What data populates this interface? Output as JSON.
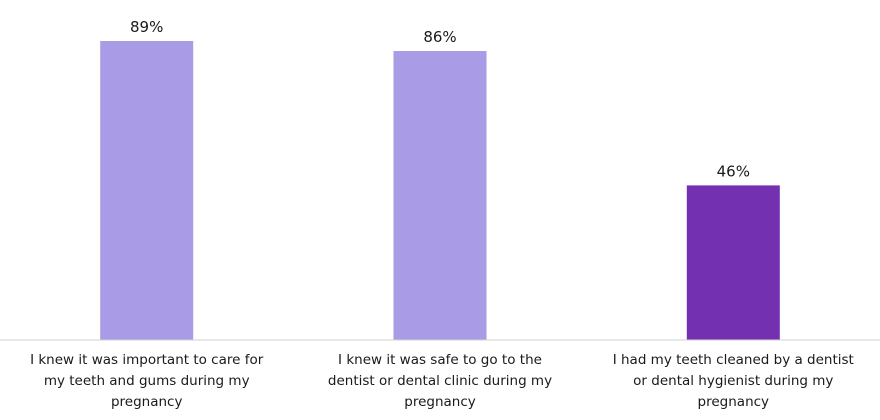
{
  "chart_data": {
    "type": "bar",
    "categories": [
      [
        "I knew it was important to care for",
        "my teeth and gums during my",
        "pregnancy"
      ],
      [
        "I knew it was safe to go to the",
        "dentist or dental clinic during my",
        "pregnancy"
      ],
      [
        "I had my teeth cleaned by a dentist",
        "or dental hygienist during my",
        "pregnancy"
      ]
    ],
    "values": [
      89,
      86,
      46
    ],
    "data_labels": [
      "89%",
      "86%",
      "46%"
    ],
    "bar_colors": [
      "#a99be6",
      "#a99be6",
      "#7330b0"
    ],
    "baseline_color": "#d0d0d0",
    "ylim": [
      0,
      100
    ],
    "grid": false,
    "legend": "none"
  }
}
